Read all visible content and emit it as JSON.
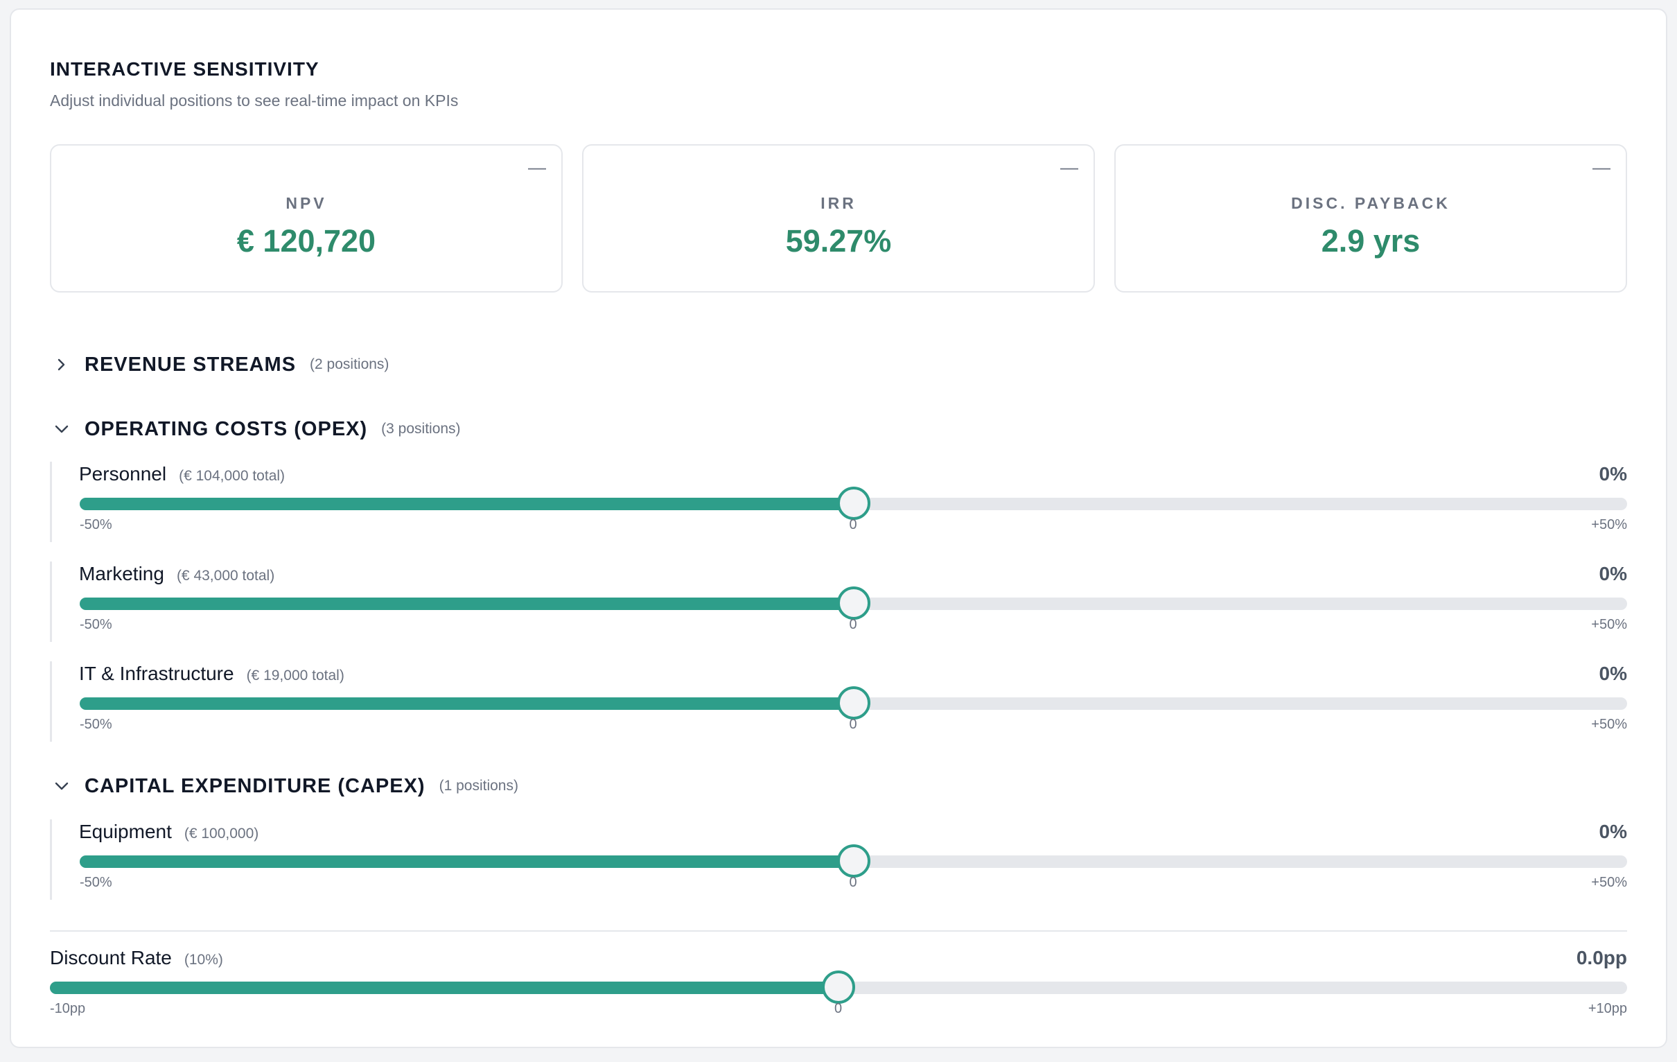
{
  "header": {
    "title": "INTERACTIVE SENSITIVITY",
    "subtitle": "Adjust individual positions to see real-time impact on KPIs"
  },
  "kpis": [
    {
      "label": "NPV",
      "value": "€ 120,720",
      "collapse_glyph": "—"
    },
    {
      "label": "IRR",
      "value": "59.27%",
      "collapse_glyph": "—"
    },
    {
      "label": "DISC. PAYBACK",
      "value": "2.9 yrs",
      "collapse_glyph": "—"
    }
  ],
  "sections": {
    "revenue": {
      "title": "REVENUE STREAMS",
      "count": "(2 positions)",
      "expanded": false
    },
    "opex": {
      "title": "OPERATING COSTS (OPEX)",
      "count": "(3 positions)",
      "expanded": true
    },
    "capex": {
      "title": "CAPITAL EXPENDITURE (CAPEX)",
      "count": "(1 positions)",
      "expanded": true
    }
  },
  "positions": {
    "personnel": {
      "label": "Personnel",
      "total": "(€ 104,000 total)",
      "value": "0%",
      "level": 0.5,
      "min": "-50%",
      "mid": "0",
      "max": "+50%"
    },
    "marketing": {
      "label": "Marketing",
      "total": "(€ 43,000 total)",
      "value": "0%",
      "level": 0.5,
      "min": "-50%",
      "mid": "0",
      "max": "+50%"
    },
    "it": {
      "label": "IT & Infrastructure",
      "total": "(€ 19,000 total)",
      "value": "0%",
      "level": 0.5,
      "min": "-50%",
      "mid": "0",
      "max": "+50%"
    },
    "equipment": {
      "label": "Equipment",
      "total": "(€ 100,000)",
      "value": "0%",
      "level": 0.5,
      "min": "-50%",
      "mid": "0",
      "max": "+50%"
    }
  },
  "discount_rate": {
    "label": "Discount Rate",
    "base": "(10%)",
    "value": "0.0pp",
    "level": 0.5,
    "min": "-10pp",
    "mid": "0",
    "max": "+10pp"
  },
  "colors": {
    "accent": "#2e9e8a",
    "kpi_value": "#2e8b6b",
    "track": "#e5e7eb"
  }
}
